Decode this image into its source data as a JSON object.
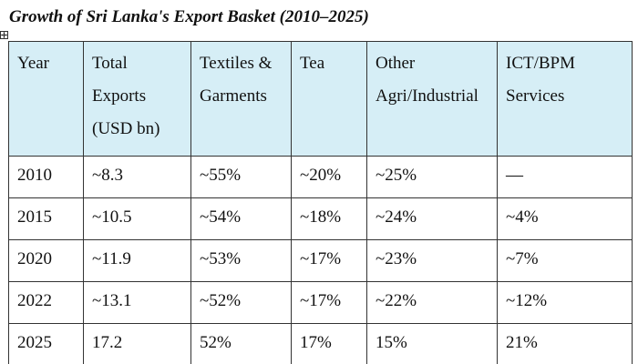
{
  "document": {
    "caption": "Growth of Sri Lanka's Export Basket (2010–2025)"
  },
  "table": {
    "headers": [
      [
        "Year"
      ],
      [
        "Total",
        "Exports",
        "(USD bn)"
      ],
      [
        "Textiles &",
        "Garments"
      ],
      [
        "Tea"
      ],
      [
        "Other",
        "Agri/Industrial"
      ],
      [
        "ICT/BPM",
        "Services"
      ]
    ],
    "rows": [
      [
        "2010",
        "~8.3",
        "~55%",
        "~20%",
        "~25%",
        "—"
      ],
      [
        "2015",
        "~10.5",
        "~54%",
        "~18%",
        "~24%",
        "~4%"
      ],
      [
        "2020",
        "~11.9",
        "~53%",
        "~17%",
        "~23%",
        "~7%"
      ],
      [
        "2022",
        "~13.1",
        "~52%",
        "~17%",
        "~22%",
        "~12%"
      ],
      [
        "2025",
        "17.2",
        "52%",
        "17%",
        "15%",
        "21%"
      ]
    ]
  }
}
